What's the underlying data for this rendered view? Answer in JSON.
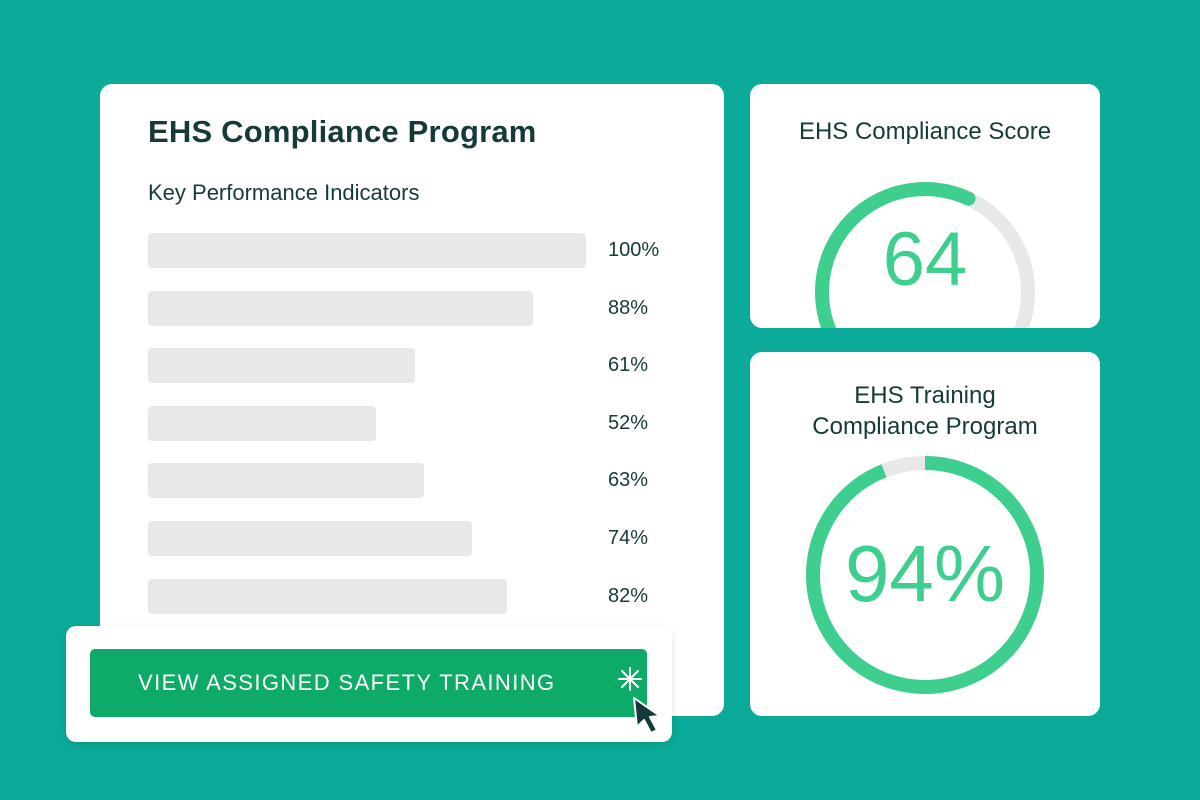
{
  "kpi_panel": {
    "title": "EHS Compliance Program",
    "subtitle": "Key Performance Indicators",
    "rows": [
      {
        "value": 100,
        "label": "100%"
      },
      {
        "value": 88,
        "label": "88%"
      },
      {
        "value": 61,
        "label": "61%"
      },
      {
        "value": 52,
        "label": "52%"
      },
      {
        "value": 63,
        "label": "63%"
      },
      {
        "value": 74,
        "label": "74%"
      },
      {
        "value": 82,
        "label": "82%"
      }
    ],
    "bar_color": "#e8e8e8"
  },
  "score_card": {
    "title": "EHS Compliance Score",
    "value": "64",
    "gauge_fraction": 0.64
  },
  "training_card": {
    "title_line1": "EHS Training",
    "title_line2": "Compliance Program",
    "value": "94%",
    "ring_fraction": 0.94
  },
  "cta": {
    "label": "VIEW ASSIGNED SAFETY TRAINING"
  },
  "icons": {
    "cursor": "pointer-cursor-icon"
  },
  "colors": {
    "background": "#0cab99",
    "accent_green": "#3ecf8e",
    "track_gray": "#e8e8e8",
    "button_green": "#0daa68",
    "text_dark": "#163a3a"
  }
}
